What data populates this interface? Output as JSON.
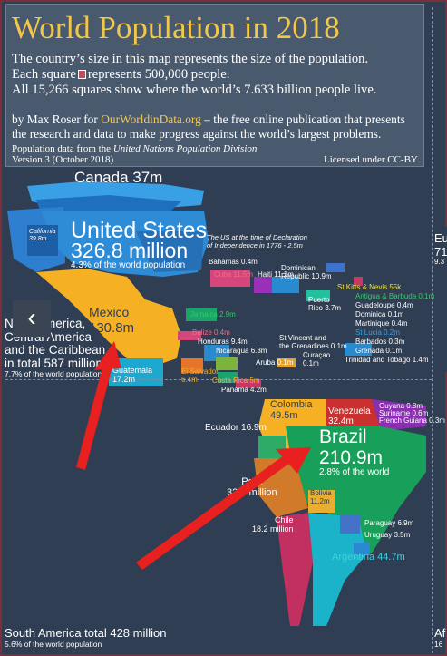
{
  "header": {
    "title": "World Population in 2018",
    "line1": "The country’s size in this map represents the size of the population.",
    "line2a": "Each square",
    "line2b": "represents 500,000 people.",
    "line3": "All 15,266 squares show where the world’s 7.633 billion people live.",
    "byline_a": "by Max Roser for",
    "byline_link": "OurWorldinData.org",
    "byline_b": "– the free online publication that presents",
    "byline_line2": "the research and data to make progress against the world’s largest problems.",
    "source_a": "Population data from the",
    "source_b": "United Nations Population Division",
    "version": "Version 3 (October 2018)",
    "license": "Licensed under CC-BY"
  },
  "labels": {
    "canada": "Canada 37m",
    "california": "California\n39.8m",
    "us_name": "United States",
    "us_pop": "326.8 million",
    "us_share": "4.3% of the world population",
    "us_note": "The US at the time of Declaration\nof Independence in 1776 - 2.5m",
    "bahamas": "Bahamas 0.4m",
    "cuba": "Cuba 11.5m",
    "haiti": "Haiti 11.1m",
    "dominican": "Dominican\nRepublic 10.9m",
    "puerto": "Puerto\nRico 3.7m",
    "stkitts": "St Kitts & Nevis 55k",
    "antigua": "Antigua & Barbuda 0.1m",
    "guadeloupe": "Guadeloupe 0.4m",
    "dominica": "Dominica 0.1m",
    "martinique": "Martinique 0.4m",
    "stlucia": "St Lucia 0.2m",
    "barbados": "Barbados 0.3m",
    "grenada": "Grenada 0.1m",
    "trinidad": "Trinidad and Tobago 1.4m",
    "stvincent": "St Vincent and\nthe Grenadines 0.1m",
    "curacao": "Curaçao\n0.1m",
    "aruba": "Aruba 0.1m",
    "jamaica": "Jamaica 2.9m",
    "belize": "Belize 0.4m",
    "honduras": "Honduras 9.4m",
    "nicaragua": "Nicaragua 6.3m",
    "elsalvador": "El Salvador\n6.4m",
    "costarica": "Costa Rica 5m",
    "panama": "Panama 4.2m",
    "guatemala": "Guatemala\n17.2m",
    "mexico_name": "Mexico",
    "mexico_pop": "130.8m",
    "na_title": "North America,\nCentral America\nand the Caribbean\nin total 587 million",
    "na_share": "7.7% of the world population",
    "venezuela": "Venezuela\n32.4m",
    "guyana": "Guyana 0.8m",
    "suriname": "Suriname 0.6m",
    "frguiana": "French Guiana 0.3m",
    "colombia": "Colombia\n49.5m",
    "ecuador": "Ecuador 16.9m",
    "brazil_name": "Brazil",
    "brazil_pop": "210.9m",
    "brazil_share": "2.8% of the world",
    "peru": "Peru\n32.6 million",
    "bolivia": "Bolivia\n11.2m",
    "chile": "Chile\n18.2 million",
    "paraguay": "Paraguay 6.9m",
    "uruguay": "Uruguay 3.5m",
    "argentina": "Argentina 44.7m",
    "sa_title": "South America total 428 million",
    "sa_share": "5.6% of the world population",
    "eu_partial": "Eu",
    "eu_num": "71",
    "eu_pct": "9.3",
    "af_partial": "Af",
    "af_num": "16"
  },
  "nav": {
    "back_icon": "chevron-left-icon",
    "back_glyph": "‹"
  },
  "colors": {
    "background": "#2f3e52",
    "title": "#f2c84b",
    "usa": "#2e8bd6",
    "canada": "#3aa0e6",
    "mexico": "#f5b024",
    "brazil": "#18a05a",
    "colombia": "#f5b024",
    "argentina": "#1bb3c9",
    "arrow": "#e8201f"
  }
}
